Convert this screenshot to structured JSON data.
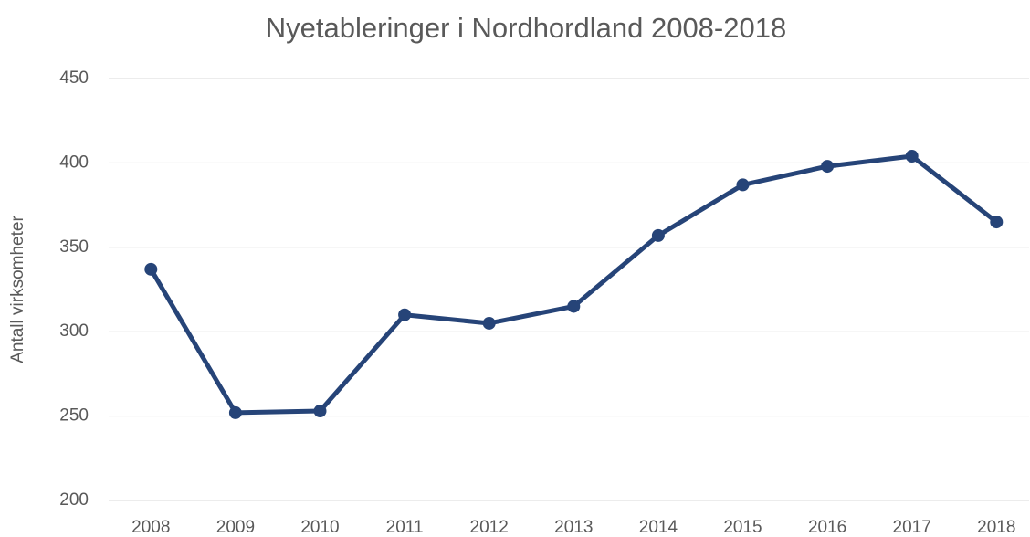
{
  "chart_data": {
    "type": "line",
    "title": "Nyetableringer i Nordhordland 2008-2018",
    "y_label": "Antall virksomheter",
    "categories": [
      "2008",
      "2009",
      "2010",
      "2011",
      "2012",
      "2013",
      "2014",
      "2015",
      "2016",
      "2017",
      "2018"
    ],
    "values": [
      337,
      252,
      253,
      310,
      305,
      315,
      357,
      387,
      398,
      404,
      365
    ],
    "color": "#264478",
    "ylim": [
      200,
      450
    ],
    "yticks": [
      200,
      250,
      300,
      350,
      400,
      450
    ],
    "grid": true
  }
}
